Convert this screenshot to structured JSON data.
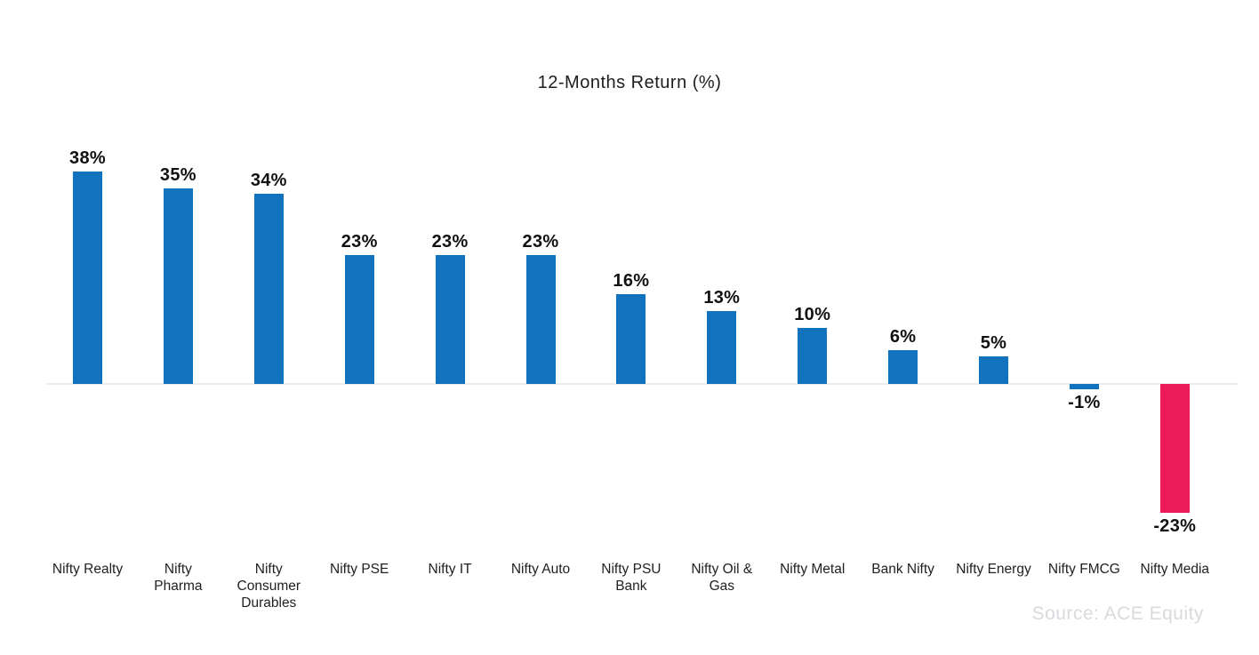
{
  "title": "12-Months Return (%)",
  "source_caption": "Source: ACE Equity",
  "colors": {
    "positive_bar": "#1173BD",
    "negative_highlight_bar": "#EC1A58",
    "axis_line": "#ececec",
    "value_label_text": "#111111",
    "category_label_text": "#1f1f1f",
    "source_text": "#d9d9de",
    "background": "#ffffff"
  },
  "chart_data": {
    "type": "bar",
    "title": "12-Months Return (%)",
    "xlabel": "",
    "ylabel": "",
    "ylim": [
      -25,
      40
    ],
    "grid": false,
    "legend": "none",
    "categories": [
      "Nifty Realty",
      "Nifty Pharma",
      "Nifty Consumer Durables",
      "Nifty PSE",
      "Nifty IT",
      "Nifty Auto",
      "Nifty PSU Bank",
      "Nifty Oil & Gas",
      "Nifty Metal",
      "Bank Nifty",
      "Nifty Energy",
      "Nifty FMCG",
      "Nifty Media"
    ],
    "category_lines": [
      [
        "Nifty Realty"
      ],
      [
        "Nifty",
        "Pharma"
      ],
      [
        "Nifty",
        "Consumer",
        "Durables"
      ],
      [
        "Nifty PSE"
      ],
      [
        "Nifty IT"
      ],
      [
        "Nifty Auto"
      ],
      [
        "Nifty PSU",
        "Bank"
      ],
      [
        "Nifty Oil &",
        "Gas"
      ],
      [
        "Nifty Metal"
      ],
      [
        "Bank Nifty"
      ],
      [
        "Nifty Energy"
      ],
      [
        "Nifty FMCG"
      ],
      [
        "Nifty Media"
      ]
    ],
    "values": [
      38,
      35,
      34,
      23,
      23,
      23,
      16,
      13,
      10,
      6,
      5,
      -1,
      -23
    ],
    "value_labels": [
      "38%",
      "35%",
      "34%",
      "23%",
      "23%",
      "23%",
      "16%",
      "13%",
      "10%",
      "6%",
      "5%",
      "-1%",
      "-23%"
    ],
    "bar_colors": [
      "#1173BD",
      "#1173BD",
      "#1173BD",
      "#1173BD",
      "#1173BD",
      "#1173BD",
      "#1173BD",
      "#1173BD",
      "#1173BD",
      "#1173BD",
      "#1173BD",
      "#1173BD",
      "#EC1A58"
    ]
  }
}
